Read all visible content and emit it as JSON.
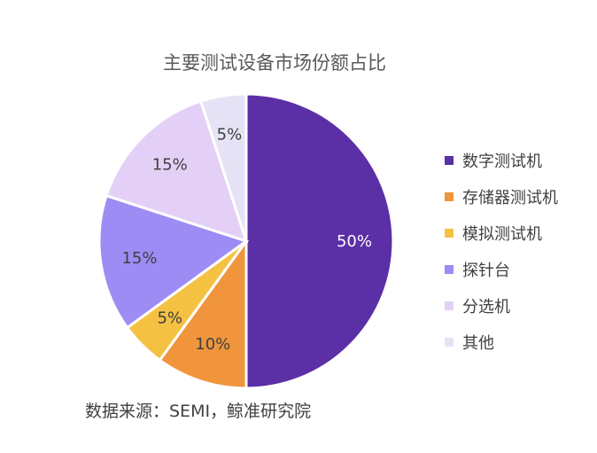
{
  "chart_data": {
    "type": "pie",
    "title": "主要测试设备市场份额占比",
    "categories": [
      "数字测试机",
      "存储器测试机",
      "模拟测试机",
      "探针台",
      "分选机",
      "其他"
    ],
    "values": [
      50,
      10,
      5,
      15,
      15,
      5
    ],
    "value_labels": [
      "50%",
      "10%",
      "5%",
      "15%",
      "15%",
      "5%"
    ],
    "colors": [
      "#5b2fa6",
      "#f0953c",
      "#f5c143",
      "#9d8cf4",
      "#e4d0f7",
      "#e6e3f6"
    ],
    "label_colors": [
      "#ffffff",
      "#404040",
      "#404040",
      "#404040",
      "#404040",
      "#404040"
    ],
    "start_angle_deg": 0,
    "direction": "clockwise",
    "legend_position": "right"
  },
  "source_note": "数据来源：SEMI，鲸准研究院"
}
